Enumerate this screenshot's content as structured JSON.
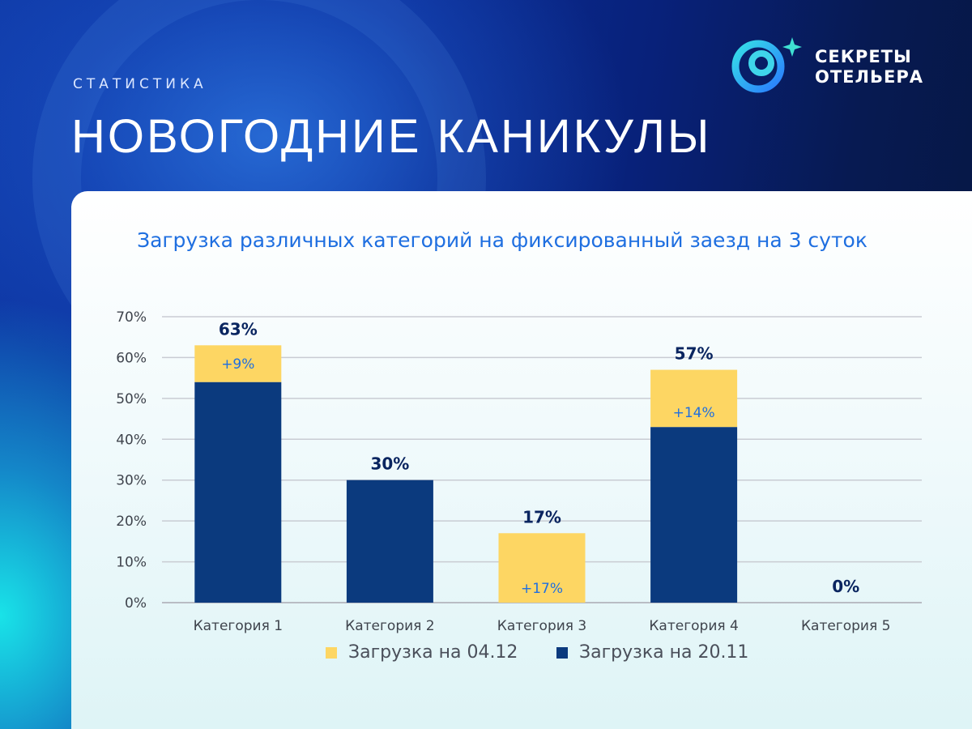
{
  "header": {
    "kicker": "СТАТИСТИКА",
    "title": "НОВОГОДНИЕ КАНИКУЛЫ"
  },
  "logo": {
    "line1": "СЕКРЕТЫ",
    "line2": "ОТЕЛЬЕРА"
  },
  "colors": {
    "series_new": "#fdd663",
    "series_base": "#0b3a7e",
    "title_blue": "#1f6fe0",
    "label_dark": "#0a2560",
    "inner_label": "#1f6fe0"
  },
  "chart_data": {
    "type": "bar",
    "stacked": true,
    "title": "Загрузка различных категорий на фиксированный заезд на 3 суток",
    "categories": [
      "Категория 1",
      "Категория 2",
      "Категория 3",
      "Категория 4",
      "Категория 5"
    ],
    "series": [
      {
        "name": "Загрузка на 20.11",
        "values": [
          54,
          30,
          0,
          43,
          0
        ]
      },
      {
        "name": "Загрузка на 04.12",
        "values": [
          9,
          0,
          17,
          14,
          0
        ]
      }
    ],
    "total_labels": [
      "63%",
      "30%",
      "17%",
      "57%",
      "0%"
    ],
    "increment_labels": [
      "+9%",
      "",
      "+17%",
      "+14%",
      ""
    ],
    "y_ticks": [
      "0%",
      "10%",
      "20%",
      "30%",
      "40%",
      "50%",
      "60%",
      "70%"
    ],
    "ylim": [
      0,
      70
    ],
    "grid": true,
    "legend_position": "bottom"
  }
}
